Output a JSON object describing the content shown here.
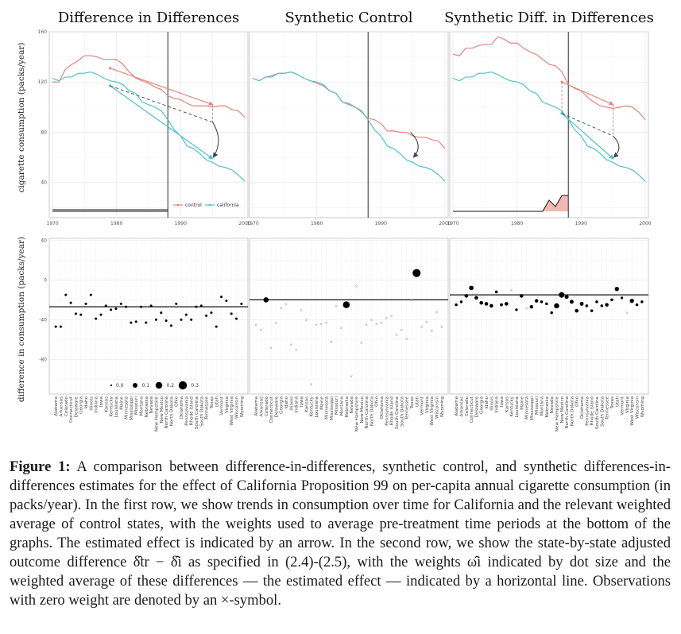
{
  "chart_data": {
    "type": "line",
    "panel_titles": [
      "Difference in Differences",
      "Synthetic Control",
      "Synthetic Diff. in Differences"
    ],
    "row1": {
      "ylabel": "cigarette consumption (packs/year)",
      "ylim": [
        12,
        160
      ],
      "yticks": [
        40,
        80,
        120,
        160
      ],
      "xlim": [
        1969.5,
        2000.5
      ],
      "xticks": [
        1970,
        1980,
        1990,
        2000
      ],
      "treatment_year": 1988,
      "legend": [
        "control",
        "california"
      ],
      "california": {
        "years": [
          1970,
          1971,
          1972,
          1973,
          1974,
          1975,
          1976,
          1977,
          1978,
          1979,
          1980,
          1981,
          1982,
          1983,
          1984,
          1985,
          1986,
          1987,
          1988,
          1989,
          1990,
          1991,
          1992,
          1993,
          1994,
          1995,
          1996,
          1997,
          1998,
          1999,
          2000
        ],
        "values": [
          123,
          121,
          124,
          124,
          127,
          127,
          128,
          126,
          123,
          121,
          120,
          118,
          113,
          111,
          104,
          102,
          100,
          97,
          90,
          82,
          77,
          69,
          67,
          63,
          58,
          56,
          53,
          52,
          50,
          46,
          41
        ]
      },
      "did_control": [
        120,
        120,
        130,
        134,
        137,
        141,
        141,
        140,
        138,
        138,
        138,
        134,
        128,
        123,
        121,
        119,
        116,
        114,
        109,
        107,
        106,
        103,
        101,
        101,
        101,
        100,
        101,
        101,
        98,
        97,
        92
      ],
      "sc_control": [
        123,
        121,
        124,
        125,
        127,
        127,
        128,
        126,
        123,
        121,
        119,
        117,
        113,
        111,
        104,
        103,
        100,
        96,
        91,
        90,
        87,
        81,
        81,
        80,
        80,
        77,
        76,
        76,
        74,
        73,
        67
      ],
      "sdid_control": [
        142,
        141,
        147,
        147,
        149,
        150,
        150,
        156,
        154,
        151,
        151,
        147,
        144,
        142,
        138,
        134,
        133,
        128,
        118,
        115,
        113,
        108,
        104,
        101,
        100,
        99,
        100,
        101,
        100,
        96,
        90
      ],
      "did_arrow": {
        "ctrl_pre": [
          1979,
          131
        ],
        "ctrl_post": [
          1995,
          102
        ],
        "cal_pre": [
          1979,
          117
        ],
        "cal_post": [
          1995,
          59
        ],
        "cf_post": [
          1995,
          88
        ]
      },
      "sc_arrow": {
        "from": [
          1995,
          80
        ],
        "to": [
          1995,
          59
        ]
      },
      "sdid_arrow": {
        "ctrl_pre": [
          1987,
          120
        ],
        "ctrl_post": [
          1995,
          102
        ],
        "cal_pre": [
          1987,
          95
        ],
        "cal_post": [
          1995,
          59
        ],
        "cf_post": [
          1995,
          77
        ]
      },
      "did_time_weights_note": "uniform",
      "sdid_time_weights": [
        [
          1970,
          0
        ],
        [
          1984,
          0
        ],
        [
          1985,
          0.35
        ],
        [
          1986,
          0.15
        ],
        [
          1987,
          0.5
        ],
        [
          1988,
          0.5
        ]
      ]
    },
    "row2": {
      "ylabel": "difference in consumption (packs/year)",
      "ylim": [
        -115,
        42
      ],
      "yticks": [
        -80,
        -40,
        0,
        40
      ],
      "size_legend": [
        "0.0",
        "0.1",
        "0.2",
        "0.3"
      ],
      "states": [
        "Alabama",
        "Arkansas",
        "Colorado",
        "Connecticut",
        "Delaware",
        "Georgia",
        "Idaho",
        "Illinois",
        "Indiana",
        "Iowa",
        "Kansas",
        "Kentucky",
        "Louisiana",
        "Maine",
        "Minnesota",
        "Mississippi",
        "Missouri",
        "Montana",
        "Nebraska",
        "Nevada",
        "New Hampshire",
        "New Mexico",
        "North Carolina",
        "North Dakota",
        "Ohio",
        "Oklahoma",
        "Pennsylvania",
        "Rhode Island",
        "South Carolina",
        "South Dakota",
        "Tennessee",
        "Texas",
        "Utah",
        "Vermont",
        "Virginia",
        "West Virginia",
        "Wisconsin",
        "Wyoming"
      ],
      "did": {
        "estimate": -27,
        "values": [
          -47,
          -47,
          -15,
          -23,
          -34,
          -35,
          -24,
          -15,
          -39,
          -35,
          -26,
          -30,
          -29,
          -24,
          -27,
          -43,
          -42,
          -27,
          -43,
          -26,
          -40,
          -33,
          -41,
          -46,
          -24,
          -40,
          -35,
          -40,
          -27,
          -26,
          -36,
          -33,
          -47,
          -17,
          -21,
          -34,
          -39,
          -24
        ]
      },
      "sc": {
        "estimate": -20,
        "values": [
          -45,
          -50,
          -20,
          -68,
          -43,
          -28,
          -24,
          -65,
          -70,
          -30,
          -40,
          -105,
          -45,
          -44,
          -43,
          -62,
          -26,
          -48,
          -25,
          -97,
          -6,
          -63,
          -45,
          -40,
          -44,
          -43,
          -38,
          -36,
          -55,
          -50,
          -59,
          -20,
          7,
          -47,
          -42,
          -51,
          -32,
          -47
        ],
        "weights": [
          0,
          0,
          0.12,
          0,
          0,
          0,
          0,
          0,
          0,
          0,
          0,
          0,
          0,
          0,
          0,
          0,
          0,
          0,
          0.2,
          0,
          0,
          0,
          0,
          0,
          0,
          0,
          0,
          0,
          0,
          0,
          0,
          0,
          0.28,
          0,
          0,
          0,
          0,
          0
        ]
      },
      "sdid": {
        "estimate": -15,
        "values": [
          -25,
          -22,
          -16,
          -8,
          -18,
          -23,
          -24,
          -26,
          -12,
          -25,
          -24,
          -10,
          -30,
          -16,
          -28,
          -27,
          -21,
          -22,
          -24,
          -33,
          -26,
          -15,
          -17,
          -22,
          -31,
          -24,
          -26,
          -31,
          -22,
          -26,
          -25,
          -20,
          -9,
          -18,
          -33,
          -21,
          -25,
          -22
        ],
        "weights": [
          0.035,
          0.035,
          0.06,
          0.09,
          0.06,
          0.06,
          0.06,
          0.06,
          0.035,
          0.04,
          0.06,
          0,
          0.03,
          0.06,
          0,
          0.055,
          0.055,
          0.035,
          0.035,
          0.035,
          0.12,
          0.14,
          0.07,
          0.07,
          0.06,
          0.065,
          0.035,
          0.035,
          0.035,
          0.035,
          0.06,
          0.035,
          0.08,
          0.03,
          0,
          0.08,
          0.035,
          0.035
        ]
      }
    }
  },
  "caption": {
    "label": "Figure 1:",
    "text": "A comparison between difference-in-differences, synthetic control, and synthetic differences-in-differences estimates for the effect of California Proposition 99 on per-capita annual cigarette consumption (in packs/year). In the first row, we show trends in consumption over time for California and the relevant weighted average of control states, with the weights used to average pre-treatment time periods at the bottom of the graphs. The estimated effect is indicated by an arrow. In the second row, we show the state-by-state adjusted outcome difference δ̂tr − δ̂i as specified in (2.4)-(2.5), with the weights ω̂i indicated by dot size and the weighted average of these differences — the estimated effect — indicated by a horizontal line. Observations with zero weight are denoted by an ×-symbol."
  },
  "colors": {
    "control": "#e8847c",
    "california": "#4fc3c9",
    "effect_fill": "#f4b8b4",
    "arrow": "#444444"
  }
}
